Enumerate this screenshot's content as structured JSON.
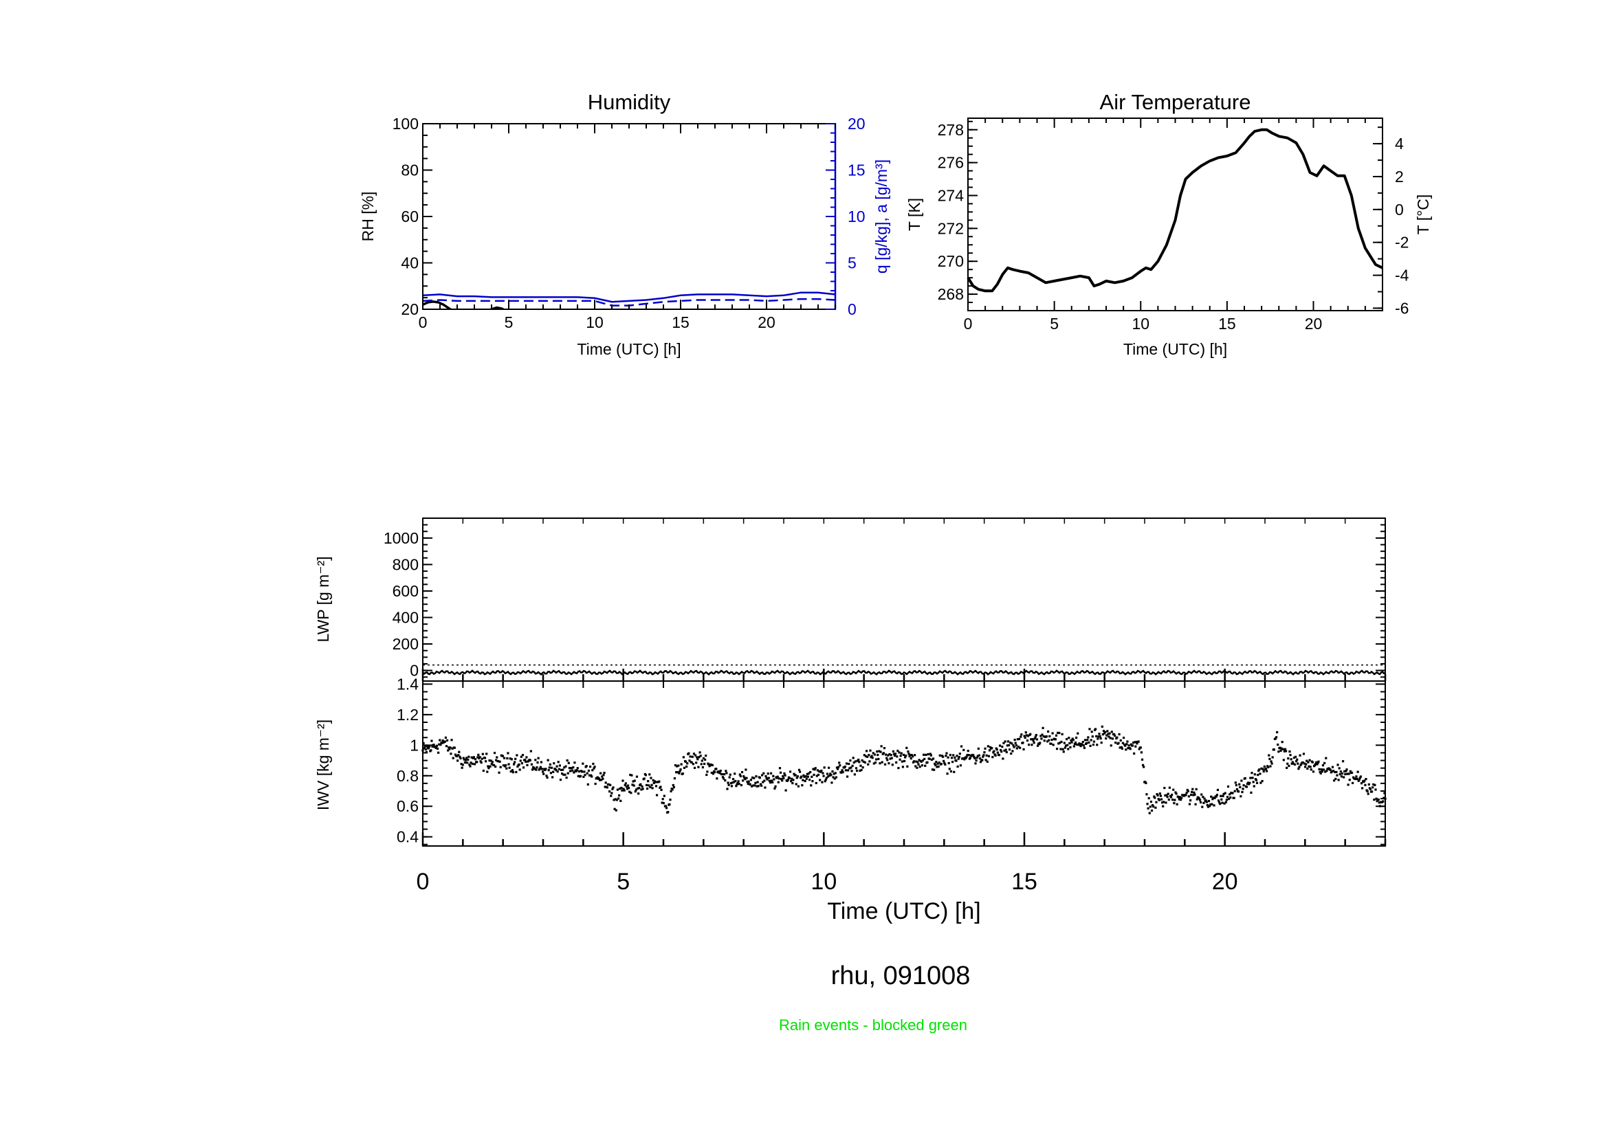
{
  "figure": {
    "caption": "rhu, 091008",
    "note": "Rain events - blocked green",
    "note_color": "#00e000",
    "ink_color": "#000000",
    "blue_color": "#0000cc"
  },
  "chart_data": [
    {
      "id": "humidity",
      "type": "line",
      "title": "Humidity",
      "xlabel": "Time (UTC) [h]",
      "ylabel": "RH [%]",
      "ylabel_right": "q [g/kg], a [g/m³]",
      "xlim": [
        0,
        24
      ],
      "ylim": [
        20,
        100
      ],
      "ylim_right": [
        0,
        20
      ],
      "xticks": [
        0,
        5,
        10,
        15,
        20
      ],
      "yticks": [
        20,
        40,
        60,
        80,
        100
      ],
      "yticks_right": [
        0,
        5,
        10,
        15,
        20
      ],
      "series": [
        {
          "name": "RH",
          "axis": "left",
          "style": "solid",
          "color": "#000000",
          "segments": [
            {
              "x": [
                0,
                0.3,
                0.6,
                0.9,
                1.2,
                1.5,
                1.8
              ],
              "y": [
                22,
                23,
                23.3,
                23,
                22,
                20.5,
                19
              ]
            },
            {
              "x": [
                3.7,
                4.0,
                4.3,
                4.6,
                4.9
              ],
              "y": [
                19,
                20,
                20.7,
                20.3,
                19
              ]
            }
          ]
        },
        {
          "name": "q",
          "axis": "right",
          "style": "dashed",
          "color": "#0000cc",
          "x": [
            0,
            1,
            2,
            3,
            4,
            5,
            6,
            7,
            8,
            9,
            10,
            11,
            12,
            13,
            14,
            15,
            16,
            17,
            18,
            19,
            20,
            21,
            22,
            23,
            24
          ],
          "y": [
            0.9,
            1.0,
            0.9,
            0.9,
            0.9,
            0.9,
            0.9,
            0.9,
            0.9,
            0.9,
            0.9,
            0.4,
            0.4,
            0.6,
            0.8,
            0.9,
            1.0,
            1.0,
            1.0,
            1.0,
            0.9,
            1.0,
            1.1,
            1.1,
            1.0
          ]
        },
        {
          "name": "a",
          "axis": "right",
          "style": "solid",
          "color": "#0000cc",
          "x": [
            0,
            1,
            2,
            3,
            4,
            5,
            6,
            7,
            8,
            9,
            10,
            11,
            12,
            13,
            14,
            15,
            16,
            17,
            18,
            19,
            20,
            21,
            22,
            23,
            24
          ],
          "y": [
            1.5,
            1.6,
            1.4,
            1.4,
            1.3,
            1.3,
            1.3,
            1.3,
            1.3,
            1.3,
            1.2,
            0.8,
            0.9,
            1.0,
            1.2,
            1.5,
            1.6,
            1.6,
            1.6,
            1.5,
            1.4,
            1.5,
            1.8,
            1.8,
            1.6
          ]
        }
      ]
    },
    {
      "id": "air_temperature",
      "type": "line",
      "title": "Air Temperature",
      "xlabel": "Time (UTC) [h]",
      "ylabel": "T [K]",
      "ylabel_right": "T [°C]",
      "xlim": [
        0,
        24
      ],
      "ylim": [
        267,
        278.7
      ],
      "xticks": [
        0,
        5,
        10,
        15,
        20
      ],
      "yticks": [
        268,
        270,
        272,
        274,
        276,
        278
      ],
      "yticks_right": [
        -6,
        -4,
        -2,
        0,
        2,
        4
      ],
      "series": [
        {
          "name": "T",
          "color": "#000000",
          "x": [
            0,
            0.3,
            0.6,
            1,
            1.4,
            1.7,
            2,
            2.3,
            2.6,
            3,
            3.5,
            4,
            4.5,
            5,
            5.5,
            6,
            6.5,
            7,
            7.3,
            7.6,
            8,
            8.5,
            9,
            9.5,
            10,
            10.3,
            10.6,
            11,
            11.5,
            12,
            12.3,
            12.6,
            13,
            13.5,
            14,
            14.5,
            15,
            15.5,
            16,
            16.3,
            16.6,
            17,
            17.3,
            17.6,
            18,
            18.5,
            19,
            19.4,
            19.8,
            20.2,
            20.6,
            21,
            21.4,
            21.8,
            22.2,
            22.6,
            23,
            23.3,
            23.6,
            24
          ],
          "y": [
            269,
            268.5,
            268.3,
            268.2,
            268.2,
            268.6,
            269.2,
            269.6,
            269.5,
            269.4,
            269.3,
            269.0,
            268.7,
            268.8,
            268.9,
            269.0,
            269.1,
            269.0,
            268.5,
            268.6,
            268.8,
            268.7,
            268.8,
            269.0,
            269.4,
            269.6,
            269.5,
            270.0,
            271.0,
            272.5,
            274.0,
            275.0,
            275.4,
            275.8,
            276.1,
            276.3,
            276.4,
            276.6,
            277.2,
            277.6,
            277.9,
            278.0,
            278.0,
            277.8,
            277.6,
            277.5,
            277.2,
            276.5,
            275.4,
            275.2,
            275.8,
            275.5,
            275.2,
            275.2,
            274.0,
            272.0,
            270.8,
            270.3,
            269.8,
            269.6
          ]
        }
      ]
    },
    {
      "id": "lwp",
      "type": "line",
      "ylabel": "LWP [g m⁻²]",
      "xlim": [
        0,
        24
      ],
      "ylim": [
        -80,
        1150
      ],
      "yticks": [
        0,
        200,
        400,
        600,
        800,
        1000
      ],
      "series": [
        {
          "name": "LWP",
          "color": "#000000",
          "constant": 0
        }
      ]
    },
    {
      "id": "iwv",
      "type": "scatter",
      "ylabel": "IWV [kg m⁻²]",
      "xlabel": "Time (UTC) [h]",
      "xlim": [
        0,
        24
      ],
      "ylim": [
        0.34,
        1.42
      ],
      "xticks": [
        0,
        5,
        10,
        15,
        20
      ],
      "yticks": [
        0.4,
        0.6,
        0.8,
        1.0,
        1.2,
        1.4
      ],
      "series": [
        {
          "name": "IWV",
          "color": "#000000",
          "x": [
            0,
            0.5,
            1,
            1.5,
            2,
            2.5,
            3,
            3.5,
            4,
            4.5,
            4.8,
            5,
            5.5,
            5.9,
            6.1,
            6.3,
            6.6,
            7,
            7.5,
            8,
            8.5,
            9,
            9.5,
            10,
            10.5,
            11,
            11.5,
            12,
            12.5,
            13,
            13.5,
            14,
            14.5,
            15,
            15.5,
            16,
            16.5,
            17,
            17.5,
            17.9,
            18.1,
            18.5,
            19,
            19.5,
            20,
            20.5,
            21,
            21.3,
            21.6,
            22,
            22.5,
            23,
            23.5,
            24
          ],
          "y": [
            0.96,
            1.02,
            0.9,
            0.89,
            0.88,
            0.9,
            0.85,
            0.83,
            0.82,
            0.8,
            0.65,
            0.73,
            0.75,
            0.74,
            0.55,
            0.82,
            0.9,
            0.9,
            0.79,
            0.77,
            0.76,
            0.78,
            0.8,
            0.8,
            0.84,
            0.9,
            0.93,
            0.92,
            0.9,
            0.88,
            0.92,
            0.93,
            0.97,
            1.02,
            1.05,
            1.0,
            1.02,
            1.06,
            1.02,
            0.98,
            0.6,
            0.66,
            0.68,
            0.64,
            0.65,
            0.74,
            0.82,
            1.02,
            0.9,
            0.88,
            0.84,
            0.82,
            0.76,
            0.62
          ]
        }
      ]
    }
  ]
}
